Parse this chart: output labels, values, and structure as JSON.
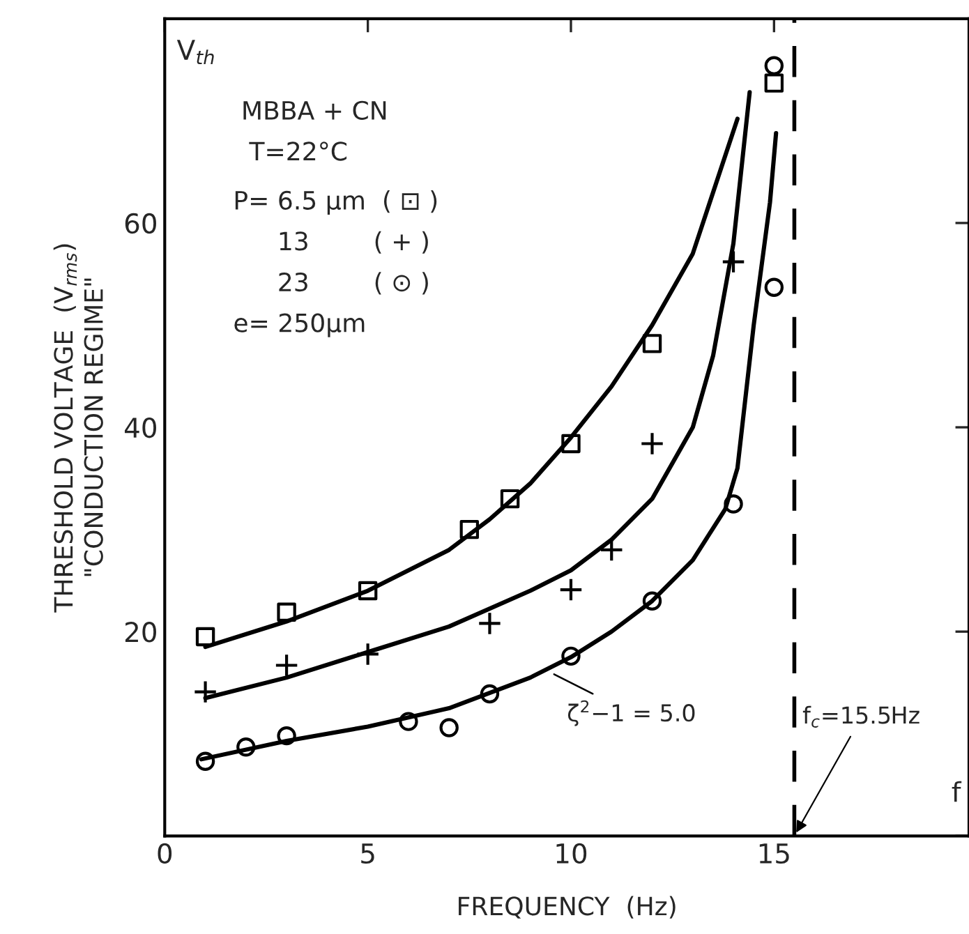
{
  "chart_data": {
    "type": "scatter",
    "xlabel": "FREQUENCY  (Hz)",
    "ylabel": "THRESHOLD VOLTAGE  (V$_{rms}$)\n\"CONDUCTION REGIME\"",
    "xlim": [
      0,
      19.8
    ],
    "ylim": [
      0,
      80
    ],
    "xticks": [
      0,
      5,
      10,
      15
    ],
    "yticks": [
      {
        "value": 0,
        "label": null
      },
      20,
      40,
      60
    ],
    "grid": false,
    "legend": false,
    "series": [
      {
        "marker": "square",
        "color": "#000000",
        "x": [
          1,
          3,
          5,
          7.5,
          8.5,
          10,
          12,
          15
        ],
        "values": [
          19.5,
          21.9,
          24,
          30,
          33,
          38.4,
          48.2,
          73.7
        ]
      },
      {
        "marker": "cross",
        "color": "#000000",
        "x": [
          1,
          3,
          5,
          8,
          10,
          11,
          12,
          14
        ],
        "values": [
          14.1,
          16.7,
          17.8,
          20.8,
          24.1,
          28,
          38.4,
          56.2
        ]
      },
      {
        "marker": "circle",
        "color": "#000000",
        "x": [
          1,
          2,
          3,
          6,
          7,
          8,
          10,
          12,
          14,
          15,
          15
        ],
        "values": [
          7.3,
          8.7,
          9.8,
          11.2,
          10.6,
          13.9,
          17.6,
          23,
          32.5,
          53.7,
          75.4
        ]
      },
      {
        "type": "line",
        "line_style": "solid",
        "color": "#000000",
        "x": [
          1,
          3,
          5,
          7,
          8,
          9,
          10,
          11,
          12,
          13,
          13.5,
          14.1
        ],
        "values": [
          18.5,
          21,
          24,
          28,
          31,
          34.5,
          39,
          44,
          50,
          57,
          63,
          70.2
        ]
      },
      {
        "type": "line",
        "line_style": "solid",
        "color": "#000000",
        "x": [
          1,
          3,
          5,
          7,
          9,
          10,
          11,
          12,
          13,
          13.5,
          14,
          14.4
        ],
        "values": [
          13.5,
          15.5,
          18,
          20.5,
          24,
          26,
          29,
          33,
          40,
          47,
          58,
          72.8
        ]
      },
      {
        "type": "line",
        "line_style": "solid",
        "color": "#000000",
        "x": [
          0.9,
          3,
          5,
          7,
          9,
          10,
          11,
          12,
          13,
          13.8,
          14.1,
          14.5,
          14.9,
          15.05
        ],
        "values": [
          7.5,
          9.3,
          10.7,
          12.5,
          15.5,
          17.5,
          20,
          23,
          27,
          32,
          36,
          50,
          62,
          68.8
        ]
      }
    ],
    "ref_lines": [
      {
        "axis": "x",
        "value": 15.5,
        "label": "f$_{c}$=15.5Hz",
        "line_style": "dashed",
        "color": "#000000"
      }
    ],
    "annotations": [
      "V$_{th}$",
      "MBBA + CN",
      "T=22°C",
      "P= 6.5 µm  ( ⊡ )",
      "13        ( + )",
      "23        ( ⊙ )",
      "e= 250µm",
      {
        "text": "ζ$^{2}$−1 = 5.0",
        "x": 9.5,
        "y": 16
      },
      "f"
    ]
  }
}
